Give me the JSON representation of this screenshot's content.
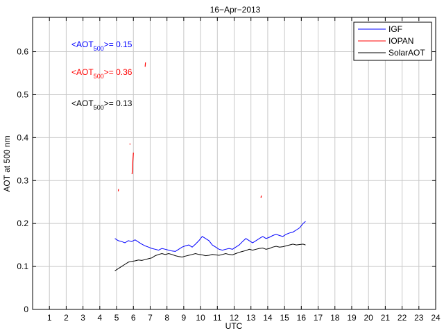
{
  "chart_data": {
    "type": "line",
    "title": "16−Apr−2013",
    "xlabel": "UTC",
    "ylabel": "AOT at 500 nm",
    "xlim": [
      0,
      24
    ],
    "ylim": [
      0,
      0.68
    ],
    "grid": true,
    "legend_position": "top-right",
    "xticks": [
      "1",
      "2",
      "3",
      "4",
      "5",
      "6",
      "7",
      "8",
      "9",
      "10",
      "11",
      "12",
      "13",
      "14",
      "15",
      "16",
      "17",
      "18",
      "19",
      "20",
      "21",
      "22",
      "23",
      "24"
    ],
    "yticks": [
      "0",
      "0.1",
      "0.2",
      "0.3",
      "0.4",
      "0.5",
      "0.6"
    ],
    "ytick_values": [
      0,
      0.1,
      0.2,
      0.3,
      0.4,
      0.5,
      0.6
    ],
    "series": [
      {
        "name": "IGF",
        "color": "#0000ff",
        "mean_label": {
          "prefix": "<AOT",
          "sub": "500",
          "suffix": ">= 0.15"
        },
        "x": [
          4.9,
          5.1,
          5.3,
          5.5,
          5.7,
          5.9,
          6.1,
          6.3,
          6.5,
          6.7,
          6.9,
          7.1,
          7.3,
          7.5,
          7.7,
          7.9,
          8.1,
          8.3,
          8.5,
          8.7,
          8.9,
          9.1,
          9.3,
          9.5,
          9.7,
          9.9,
          10.1,
          10.3,
          10.5,
          10.7,
          10.9,
          11.1,
          11.3,
          11.5,
          11.7,
          11.9,
          12.1,
          12.3,
          12.5,
          12.7,
          12.9,
          13.1,
          13.3,
          13.5,
          13.7,
          13.9,
          14.1,
          14.3,
          14.5,
          14.7,
          14.9,
          15.1,
          15.3,
          15.5,
          15.7,
          15.9,
          16.1,
          16.25
        ],
        "y": [
          0.165,
          0.16,
          0.158,
          0.155,
          0.16,
          0.158,
          0.162,
          0.157,
          0.152,
          0.148,
          0.145,
          0.142,
          0.14,
          0.138,
          0.142,
          0.14,
          0.138,
          0.136,
          0.135,
          0.14,
          0.145,
          0.148,
          0.15,
          0.145,
          0.152,
          0.16,
          0.17,
          0.165,
          0.16,
          0.15,
          0.145,
          0.14,
          0.138,
          0.14,
          0.142,
          0.14,
          0.145,
          0.15,
          0.158,
          0.165,
          0.16,
          0.155,
          0.16,
          0.165,
          0.17,
          0.165,
          0.168,
          0.172,
          0.175,
          0.172,
          0.17,
          0.175,
          0.178,
          0.18,
          0.185,
          0.19,
          0.2,
          0.205
        ]
      },
      {
        "name": "IOPAN",
        "color": "#ff0000",
        "mean_label": {
          "prefix": "<AOT",
          "sub": "500",
          "suffix": ">= 0.36"
        },
        "segments": [
          {
            "x": [
              5.1,
              5.12
            ],
            "y": [
              0.275,
              0.28
            ]
          },
          {
            "x": [
              5.92,
              5.95,
              5.97,
              6.0
            ],
            "y": [
              0.315,
              0.325,
              0.345,
              0.365
            ]
          },
          {
            "x": [
              6.7,
              6.72
            ],
            "y": [
              0.565,
              0.575
            ]
          },
          {
            "x": [
              13.6,
              13.62
            ],
            "y": [
              0.26,
              0.265
            ]
          }
        ]
      },
      {
        "name": "SolarAOT",
        "color": "#000000",
        "mean_label": {
          "prefix": "<AOT",
          "sub": "500",
          "suffix": ">= 0.13"
        },
        "x": [
          4.9,
          5.1,
          5.3,
          5.5,
          5.7,
          5.9,
          6.1,
          6.3,
          6.5,
          6.7,
          6.9,
          7.1,
          7.3,
          7.5,
          7.7,
          7.9,
          8.1,
          8.3,
          8.5,
          8.7,
          8.9,
          9.1,
          9.3,
          9.5,
          9.7,
          9.9,
          10.1,
          10.3,
          10.5,
          10.7,
          10.9,
          11.1,
          11.3,
          11.5,
          11.7,
          11.9,
          12.1,
          12.3,
          12.5,
          12.7,
          12.9,
          13.1,
          13.3,
          13.5,
          13.7,
          13.9,
          14.1,
          14.3,
          14.5,
          14.7,
          14.9,
          15.1,
          15.3,
          15.5,
          15.7,
          15.9,
          16.1,
          16.25
        ],
        "y": [
          0.09,
          0.095,
          0.1,
          0.105,
          0.11,
          0.112,
          0.113,
          0.115,
          0.114,
          0.116,
          0.118,
          0.12,
          0.125,
          0.128,
          0.13,
          0.128,
          0.13,
          0.128,
          0.125,
          0.123,
          0.122,
          0.124,
          0.126,
          0.128,
          0.13,
          0.128,
          0.127,
          0.125,
          0.126,
          0.128,
          0.127,
          0.126,
          0.128,
          0.13,
          0.128,
          0.127,
          0.13,
          0.133,
          0.135,
          0.137,
          0.14,
          0.138,
          0.14,
          0.142,
          0.143,
          0.14,
          0.142,
          0.145,
          0.147,
          0.145,
          0.146,
          0.148,
          0.15,
          0.152,
          0.15,
          0.151,
          0.152,
          0.15
        ]
      }
    ],
    "extra_points": [
      {
        "series": "IOPAN",
        "x": 5.8,
        "y": 0.385
      }
    ]
  }
}
